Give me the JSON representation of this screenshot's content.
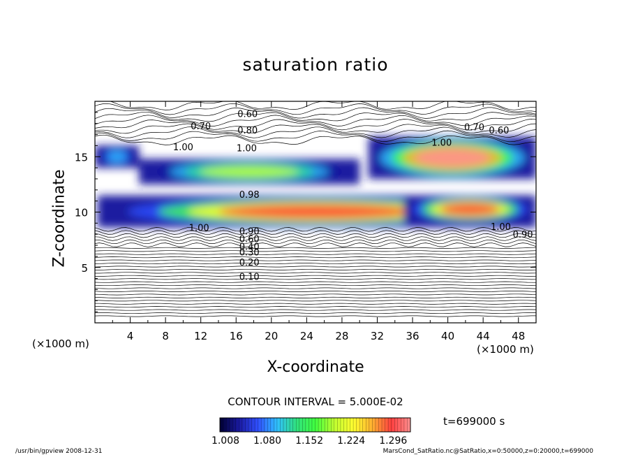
{
  "chart_data": {
    "type": "heatmap",
    "title": "saturation ratio",
    "xlabel": "X-coordinate",
    "ylabel": "Z-coordinate",
    "x_units": "(×1000 m)",
    "x_units_right": "(×1000 m)",
    "y_units": "(×1000 m)",
    "xlim": [
      0,
      50
    ],
    "ylim": [
      0,
      20
    ],
    "x_ticks": [
      4,
      8,
      12,
      16,
      20,
      24,
      28,
      32,
      36,
      40,
      44,
      48
    ],
    "y_ticks": [
      5,
      10,
      15
    ],
    "grid": false,
    "contour_interval": "CONTOUR INTERVAL = 5.000E-02",
    "contour_labels": [
      {
        "text": "0.60",
        "x": 17.3,
        "z": 18.9
      },
      {
        "text": "0.70",
        "x": 12.0,
        "z": 17.8
      },
      {
        "text": "0.80",
        "x": 17.3,
        "z": 17.4
      },
      {
        "text": "1.00",
        "x": 10.0,
        "z": 15.9
      },
      {
        "text": "1.00",
        "x": 17.2,
        "z": 15.8
      },
      {
        "text": "0.70",
        "x": 43.0,
        "z": 17.7
      },
      {
        "text": "0.60",
        "x": 45.8,
        "z": 17.4
      },
      {
        "text": "1.00",
        "x": 39.3,
        "z": 16.3
      },
      {
        "text": "0.98",
        "x": 17.5,
        "z": 11.6
      },
      {
        "text": "1.00",
        "x": 11.8,
        "z": 8.6
      },
      {
        "text": "0.90",
        "x": 17.5,
        "z": 8.3
      },
      {
        "text": "0.60",
        "x": 17.5,
        "z": 7.6
      },
      {
        "text": "0.40",
        "x": 17.5,
        "z": 6.9
      },
      {
        "text": "0.30",
        "x": 17.5,
        "z": 6.4
      },
      {
        "text": "0.20",
        "x": 17.5,
        "z": 5.5
      },
      {
        "text": "0.10",
        "x": 17.5,
        "z": 4.2
      },
      {
        "text": "1.00",
        "x": 46.0,
        "z": 8.7
      },
      {
        "text": "0.90",
        "x": 48.5,
        "z": 8.0
      }
    ],
    "colorbar": {
      "ticks": [
        "1.008",
        "1.080",
        "1.152",
        "1.224",
        "1.296"
      ],
      "min": 1.008,
      "max": 1.33,
      "colormap": [
        "#000033",
        "#1a1aa0",
        "#3050ff",
        "#30c0ff",
        "#30e080",
        "#40ff40",
        "#c0ff30",
        "#ffff30",
        "#ffb030",
        "#ff4040",
        "#ff9090"
      ]
    },
    "supersaturated_regions": [
      {
        "x0": 0.3,
        "x1": 50,
        "z0": 8.6,
        "z1": 11.5,
        "peak": 1.31
      },
      {
        "x0": 5,
        "x1": 30,
        "z0": 12.5,
        "z1": 14.8,
        "peak": 1.2
      },
      {
        "x0": 31,
        "x1": 50,
        "z0": 13.0,
        "z1": 16.8,
        "peak": 1.33
      },
      {
        "x0": 0,
        "x1": 5,
        "z0": 14.0,
        "z1": 16.0,
        "peak": 1.1
      },
      {
        "x0": 35,
        "x1": 50,
        "z0": 9.0,
        "z1": 11.5,
        "peak": 1.3
      }
    ]
  },
  "annotation": {
    "timestamp": "t=699000 s"
  },
  "footer": {
    "left": "/usr/bin/gpview   2008-12-31",
    "right": "MarsCond_SatRatio.nc@SatRatio,x=0:50000,z=0:20000,t=699000"
  }
}
